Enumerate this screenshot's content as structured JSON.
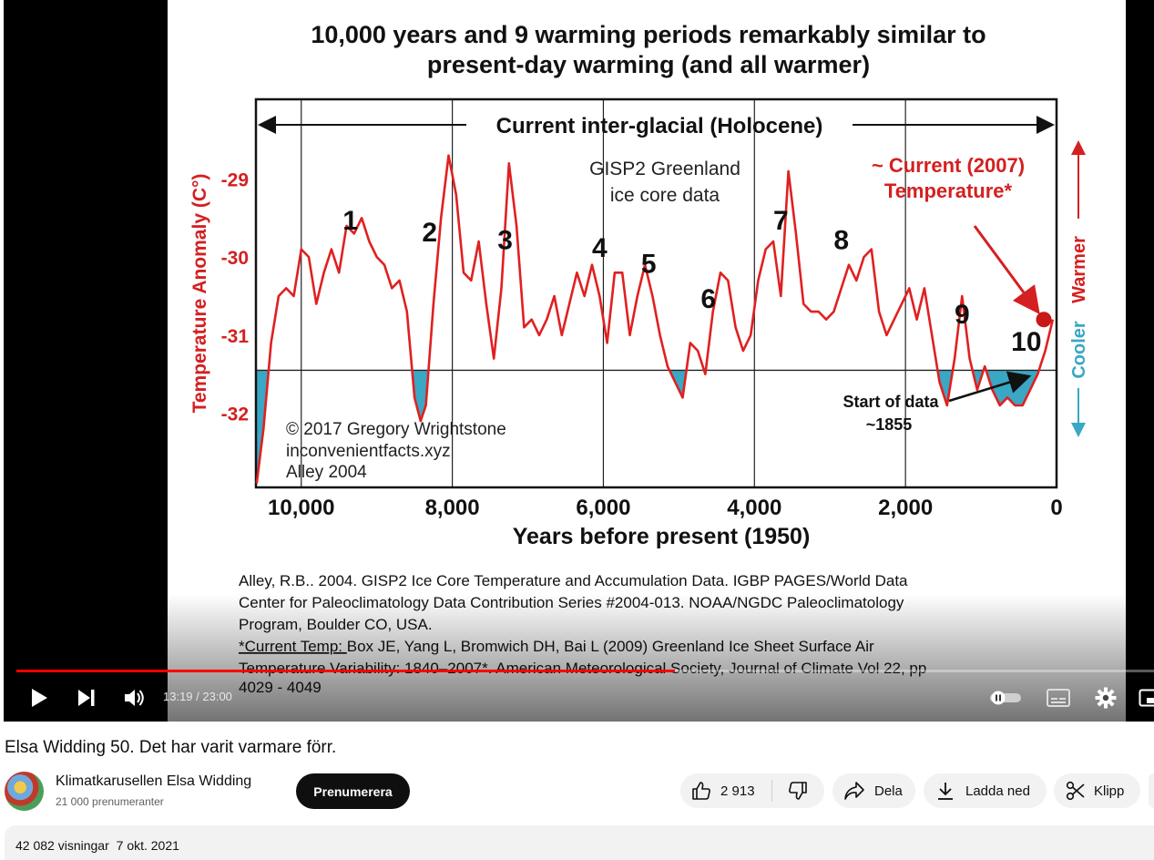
{
  "chart_data": {
    "type": "line",
    "title": "10,000 years and 9 warming periods remarkably similar to present-day warming (and all warmer)",
    "title_lines": [
      "10,000 years and 9 warming periods remarkably similar to",
      "present-day warming (and all warmer)"
    ],
    "xlabel": "Years before present (1950)",
    "ylabel": "Temperature Anomaly (C°)",
    "xlim": [
      10600,
      0
    ],
    "ylim": [
      -32.95,
      -27.98
    ],
    "x_reversed": true,
    "xticks": [
      10000,
      8000,
      6000,
      4000,
      2000,
      0
    ],
    "xtick_labels": [
      "10,000",
      "8,000",
      "6,000",
      "4,000",
      "2,000",
      "0"
    ],
    "yticks": [
      -29,
      -30,
      -31,
      -32
    ],
    "ytick_labels": [
      "-29",
      "-30",
      "-31",
      "-32"
    ],
    "reference_level": -31.45,
    "grid": true,
    "series": [
      {
        "color": "#e02020",
        "x": [
          10590,
          10500,
          10400,
          10300,
          10200,
          10100,
          10000,
          9900,
          9800,
          9700,
          9600,
          9500,
          9400,
          9300,
          9200,
          9100,
          9000,
          8900,
          8800,
          8700,
          8600,
          8500,
          8420,
          8350,
          8250,
          8150,
          8050,
          7950,
          7850,
          7750,
          7650,
          7550,
          7450,
          7350,
          7250,
          7150,
          7050,
          6950,
          6850,
          6750,
          6650,
          6550,
          6450,
          6350,
          6250,
          6150,
          6050,
          5950,
          5850,
          5750,
          5650,
          5550,
          5450,
          5350,
          5250,
          5150,
          5050,
          4950,
          4850,
          4750,
          4650,
          4550,
          4450,
          4350,
          4250,
          4150,
          4050,
          3950,
          3850,
          3750,
          3650,
          3550,
          3450,
          3350,
          3250,
          3150,
          3050,
          2950,
          2850,
          2750,
          2650,
          2550,
          2450,
          2350,
          2250,
          2150,
          2050,
          1950,
          1850,
          1750,
          1650,
          1550,
          1450,
          1350,
          1250,
          1150,
          1050,
          950,
          850,
          750,
          650,
          550,
          450,
          350,
          250,
          150,
          50
        ],
        "y": [
          -32.9,
          -32.2,
          -31.1,
          -30.5,
          -30.4,
          -30.5,
          -29.9,
          -30.0,
          -30.6,
          -30.2,
          -29.9,
          -30.2,
          -29.6,
          -29.7,
          -29.5,
          -29.8,
          -30.0,
          -30.1,
          -30.4,
          -30.3,
          -30.7,
          -31.8,
          -32.1,
          -31.9,
          -30.6,
          -29.5,
          -28.7,
          -29.2,
          -30.2,
          -30.3,
          -29.8,
          -30.6,
          -31.3,
          -30.4,
          -28.8,
          -29.6,
          -30.9,
          -30.8,
          -31.0,
          -30.8,
          -30.5,
          -31.0,
          -30.6,
          -30.2,
          -30.5,
          -30.1,
          -30.5,
          -31.1,
          -30.2,
          -30.2,
          -31.0,
          -30.5,
          -30.1,
          -30.5,
          -31.0,
          -31.4,
          -31.6,
          -31.8,
          -31.1,
          -31.2,
          -31.5,
          -30.7,
          -30.2,
          -30.3,
          -30.9,
          -31.2,
          -31.0,
          -30.3,
          -29.9,
          -29.8,
          -30.5,
          -28.9,
          -29.7,
          -30.6,
          -30.7,
          -30.7,
          -30.8,
          -30.7,
          -30.4,
          -30.1,
          -30.3,
          -30.0,
          -29.9,
          -30.7,
          -31.0,
          -30.8,
          -30.6,
          -30.4,
          -30.8,
          -30.4,
          -31.0,
          -31.6,
          -31.9,
          -31.3,
          -30.5,
          -31.3,
          -31.7,
          -31.4,
          -31.7,
          -31.9,
          -31.8,
          -31.9,
          -31.9,
          -31.7,
          -31.5,
          -31.2,
          -30.8
        ]
      }
    ],
    "annotations": {
      "span_label": "Current inter-glacial (Holocene)",
      "source_label_1": "GISP2 Greenland",
      "source_label_2": "ice core data",
      "current_label_1": "~ Current (2007)",
      "current_label_2": "Temperature*",
      "warmer": "Warmer",
      "cooler": "Cooler",
      "start_label_1": "Start of data",
      "start_label_2": "~1855",
      "credit_1": "© 2017 Gregory Wrightstone",
      "credit_2": "inconvenientfacts.xyz",
      "credit_3": "Alley 2004",
      "current_value": -30.8
    },
    "period_labels": [
      {
        "text": "1",
        "x": 9350,
        "y": -29.65
      },
      {
        "text": "2",
        "x": 8300,
        "y": -29.8
      },
      {
        "text": "3",
        "x": 7300,
        "y": -29.9
      },
      {
        "text": "4",
        "x": 6050,
        "y": -30.0
      },
      {
        "text": "5",
        "x": 5400,
        "y": -30.2
      },
      {
        "text": "6",
        "x": 4610,
        "y": -30.65
      },
      {
        "text": "7",
        "x": 3650,
        "y": -29.65
      },
      {
        "text": "8",
        "x": 2850,
        "y": -29.9
      },
      {
        "text": "9",
        "x": 1250,
        "y": -30.85
      },
      {
        "text": "10",
        "x": 400,
        "y": -31.2
      }
    ]
  },
  "references": {
    "line1": "Alley, R.B.. 2004. GISP2 Ice Core Temperature and Accumulation Data. IGBP PAGES/World Data",
    "line2": "Center for Paleoclimatology Data Contribution Series #2004-013. NOAA/NGDC Paleoclimatology",
    "line3": "Program, Boulder CO, USA.",
    "line4_prefix": "*Current Temp: ",
    "line4": "Box JE, Yang L, Bromwich DH, Bai L (2009) Greenland Ice Sheet Surface Air",
    "line5": "Temperature Variability: 1840–2007*. American Meteorological Society, Journal of Climate Vol 22, pp",
    "line6": "4029 - 4049"
  },
  "player": {
    "time": "13:19 / 23:00",
    "progress": 0.579,
    "icons": {
      "play": "play-icon",
      "next": "next-icon",
      "volume": "volume-icon",
      "autoplay": "autoplay-toggle-icon",
      "captions": "captions-icon",
      "settings": "settings-gear-icon",
      "miniplayer": "miniplayer-icon"
    }
  },
  "video": {
    "title": "Elsa Widding 50. Det har varit varmare förr.",
    "channel": "Klimatkarusellen Elsa Widding",
    "subscribers": "21 000 prenumeranter",
    "subscribe_label": "Prenumerera",
    "likes": "2 913",
    "share_label": "Dela",
    "download_label": "Ladda ned",
    "clip_label": "Klipp",
    "views": "42 082 visningar",
    "date": "7 okt. 2021"
  },
  "colors": {
    "line": "#e02020",
    "fill_below": "#3aa7c4",
    "subscribe_bg": "#0f0f0f",
    "progress": "#ff0000",
    "pill_bg": "#f2f2f2"
  }
}
